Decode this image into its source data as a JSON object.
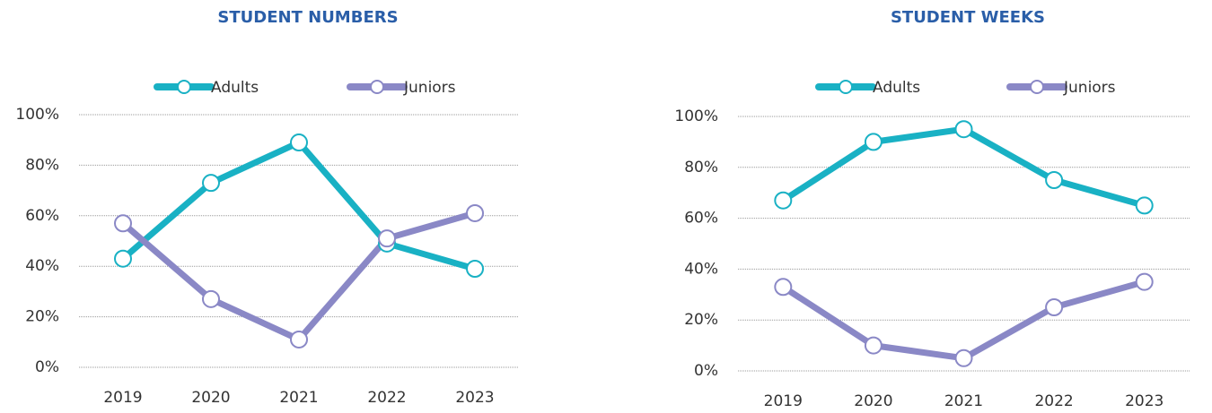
{
  "chart_data": [
    {
      "type": "line",
      "title": "STUDENT NUMBERS",
      "categories": [
        "2019",
        "2020",
        "2021",
        "2022",
        "2023"
      ],
      "series": [
        {
          "name": "Adults",
          "color": "#19b1c4",
          "values": [
            43,
            73,
            89,
            49,
            39
          ]
        },
        {
          "name": "Juniors",
          "color": "#8a88c6",
          "values": [
            57,
            27,
            11,
            51,
            61
          ]
        }
      ],
      "ylim": [
        0,
        100
      ],
      "yticks": [
        {
          "value": 0,
          "label": "0%"
        },
        {
          "value": 20,
          "label": "20%"
        },
        {
          "value": 40,
          "label": "40%"
        },
        {
          "value": 60,
          "label": "60%"
        },
        {
          "value": 80,
          "label": "80%"
        },
        {
          "value": 100,
          "label": "100%"
        }
      ],
      "grid": true,
      "legend": "top"
    },
    {
      "type": "line",
      "title": "STUDENT WEEKS",
      "categories": [
        "2019",
        "2020",
        "2021",
        "2022",
        "2023"
      ],
      "series": [
        {
          "name": "Adults",
          "color": "#19b1c4",
          "values": [
            67,
            90,
            95,
            75,
            65
          ]
        },
        {
          "name": "Juniors",
          "color": "#8a88c6",
          "values": [
            33,
            10,
            5,
            25,
            35
          ]
        }
      ],
      "ylim": [
        0,
        100
      ],
      "yticks": [
        {
          "value": 0,
          "label": "0%"
        },
        {
          "value": 20,
          "label": "20%"
        },
        {
          "value": 40,
          "label": "40%"
        },
        {
          "value": 60,
          "label": "60%"
        },
        {
          "value": 80,
          "label": "80%"
        },
        {
          "value": 100,
          "label": "100%"
        }
      ],
      "grid": true,
      "legend": "top"
    }
  ]
}
